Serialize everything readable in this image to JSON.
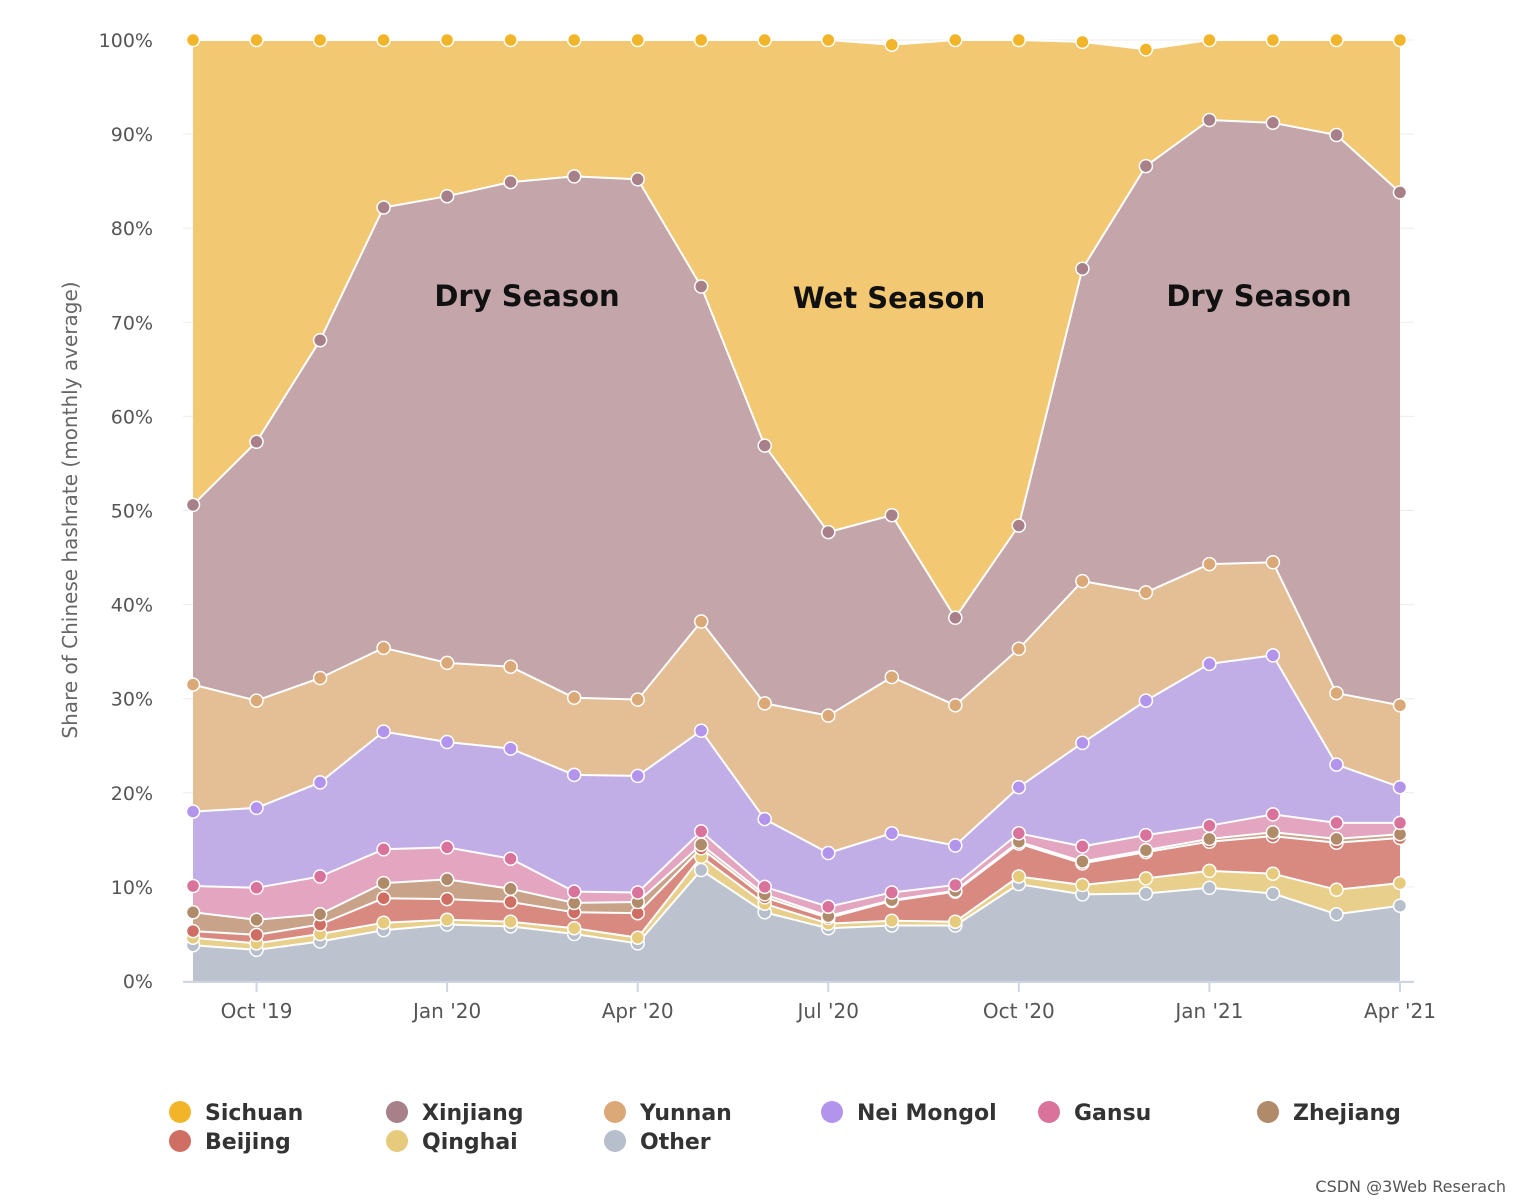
{
  "chart_data": {
    "type": "area",
    "stacked": true,
    "ylabel": "Share of Chinese hashrate (monthly average)",
    "ylim": [
      0,
      100
    ],
    "yticks": [
      "0%",
      "10%",
      "20%",
      "30%",
      "40%",
      "50%",
      "60%",
      "70%",
      "80%",
      "90%",
      "100%"
    ],
    "xticks": [
      {
        "label": "Oct '19",
        "index": 1
      },
      {
        "label": "Jan '20",
        "index": 4
      },
      {
        "label": "Apr '20",
        "index": 7
      },
      {
        "label": "Jul '20",
        "index": 10
      },
      {
        "label": "Oct '20",
        "index": 13
      },
      {
        "label": "Jan '21",
        "index": 16
      },
      {
        "label": "Apr '21",
        "index": 19
      }
    ],
    "categories": [
      "Sep 2019",
      "Oct 2019",
      "Nov 2019",
      "Dec 2019",
      "Jan 2020",
      "Feb 2020",
      "Mar 2020",
      "Apr 2020",
      "May 2020",
      "Jun 2020",
      "Jul 2020",
      "Aug 2020",
      "Sep 2020",
      "Oct 2020",
      "Nov 2020",
      "Dec 2020",
      "Jan 2021",
      "Feb 2021",
      "Mar 2021",
      "Apr 2021"
    ],
    "series": [
      {
        "name": "Other",
        "color": "#bcc3cf",
        "values": [
          3.8,
          3.3,
          4.2,
          5.4,
          6.0,
          5.8,
          5.0,
          4.0,
          11.8,
          7.3,
          5.6,
          5.9,
          5.9,
          10.3,
          9.2,
          9.3,
          9.9,
          9.3,
          7.1,
          8.0
        ]
      },
      {
        "name": "Qinghai",
        "color": "#e8cf8c",
        "values": [
          0.8,
          0.7,
          0.8,
          0.8,
          0.5,
          0.5,
          0.6,
          0.6,
          1.4,
          0.9,
          0.5,
          0.5,
          0.4,
          0.8,
          1.0,
          1.6,
          1.8,
          2.1,
          2.6,
          2.4
        ]
      },
      {
        "name": "Beijing",
        "color": "#d98a80",
        "values": [
          0.7,
          0.9,
          1.0,
          2.6,
          2.2,
          2.1,
          1.7,
          2.6,
          0.9,
          0.7,
          0.6,
          2.1,
          3.2,
          3.5,
          2.3,
          2.8,
          3.1,
          4.0,
          5.0,
          4.8
        ]
      },
      {
        "name": "Zhejiang",
        "color": "#c9a28a",
        "values": [
          2.0,
          1.6,
          1.1,
          1.6,
          2.1,
          1.4,
          1.0,
          1.2,
          0.4,
          0.3,
          0.2,
          0.1,
          0.1,
          0.2,
          0.2,
          0.2,
          0.3,
          0.4,
          0.4,
          0.4
        ]
      },
      {
        "name": "Gansu",
        "color": "#e3a5bf",
        "values": [
          2.8,
          3.4,
          4.0,
          3.6,
          3.4,
          3.2,
          1.2,
          1.0,
          1.4,
          0.8,
          1.0,
          0.8,
          0.6,
          0.9,
          1.6,
          1.6,
          1.4,
          1.9,
          1.7,
          1.2
        ]
      },
      {
        "name": "Nei Mongol",
        "color": "#c2aee6",
        "values": [
          7.9,
          8.5,
          10.0,
          12.5,
          11.2,
          11.7,
          12.4,
          12.4,
          10.7,
          7.2,
          5.7,
          6.3,
          4.2,
          4.9,
          11.0,
          14.3,
          17.2,
          16.9,
          6.2,
          3.8
        ]
      },
      {
        "name": "Yunnan",
        "color": "#e4bf96",
        "values": [
          13.5,
          11.4,
          11.1,
          8.9,
          8.4,
          8.7,
          8.2,
          8.1,
          11.6,
          12.3,
          14.6,
          16.6,
          14.9,
          14.7,
          17.2,
          11.5,
          10.6,
          9.9,
          7.6,
          8.7
        ]
      },
      {
        "name": "Xinjiang",
        "color": "#c3a5aa",
        "values": [
          19.1,
          27.5,
          35.9,
          46.8,
          49.6,
          51.5,
          55.4,
          55.3,
          35.6,
          27.4,
          19.5,
          17.2,
          9.3,
          13.1,
          33.2,
          45.3,
          47.2,
          46.7,
          59.3,
          54.5
        ]
      },
      {
        "name": "Sichuan",
        "color": "#f2c873",
        "values": [
          49.4,
          42.7,
          31.9,
          17.8,
          16.6,
          15.1,
          14.5,
          14.8,
          26.2,
          43.1,
          52.3,
          50.0,
          61.4,
          51.6,
          24.1,
          12.4,
          8.5,
          8.8,
          10.1,
          16.2
        ]
      }
    ],
    "annotations": [
      "Dry Season",
      "Wet Season",
      "Dry Season"
    ],
    "legend": {
      "position": "bottom",
      "items": [
        "Sichuan",
        "Xinjiang",
        "Yunnan",
        "Nei Mongol",
        "Gansu",
        "Zhejiang",
        "Beijing",
        "Qinghai",
        "Other"
      ]
    },
    "grid": true
  },
  "colors": {
    "Sichuan": "#f2c873",
    "Xinjiang": "#c3a5aa",
    "Yunnan": "#e4bf96",
    "Nei Mongol": "#c2aee6",
    "Gansu": "#e3a5bf",
    "Zhejiang": "#c9a28a",
    "Beijing": "#d98a80",
    "Qinghai": "#e8cf8c",
    "Other": "#bcc3cf",
    "markers": {
      "Sichuan": "#f2b52a",
      "Xinjiang": "#a8808a",
      "Yunnan": "#dba877",
      "Nei Mongol": "#b394ec",
      "Gansu": "#d9739b",
      "Zhejiang": "#b08b6a",
      "Beijing": "#cf6e62",
      "Qinghai": "#e6cb7c",
      "Other": "#b7bfcc"
    }
  },
  "watermark": "CSDN @3Web Reserach"
}
